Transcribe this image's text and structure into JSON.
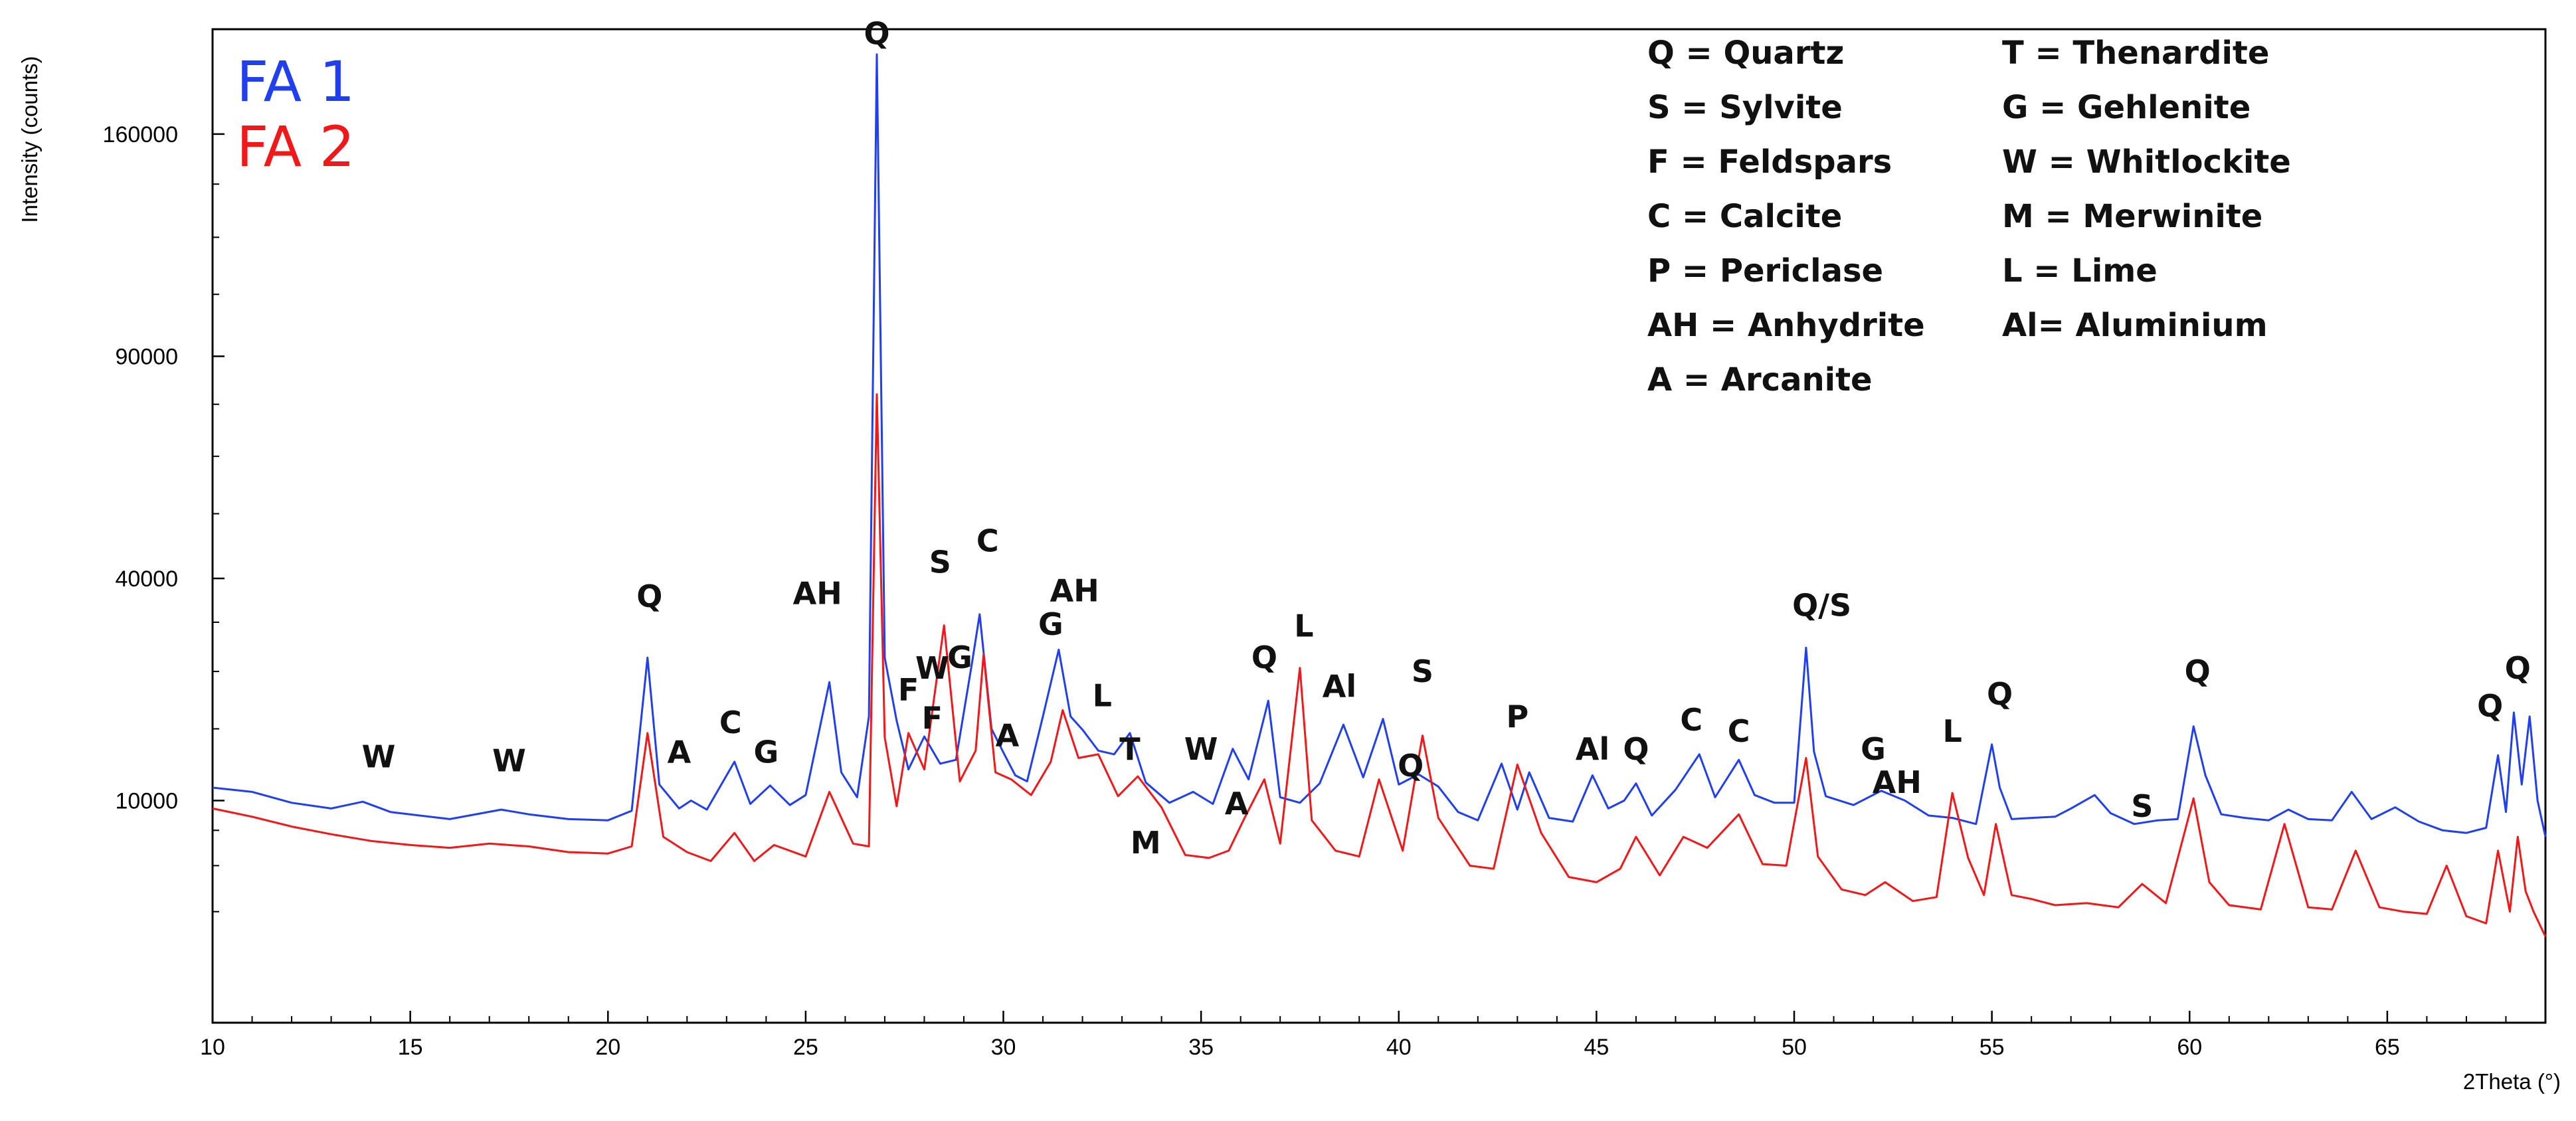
{
  "chart_data": {
    "type": "line",
    "xlabel": "2Theta (°)",
    "ylabel": "Intensity (counts)",
    "xlim": [
      10,
      69
    ],
    "y_scale": "sqrt",
    "ylim": [
      0,
      200000
    ],
    "x_ticks": [
      10,
      15,
      20,
      25,
      30,
      35,
      40,
      45,
      50,
      55,
      60,
      65
    ],
    "y_ticks": [
      10000,
      40000,
      90000,
      160000
    ],
    "grid": false,
    "series_legend_position": "top-left",
    "series": [
      {
        "name": "FA 1",
        "color": "#1f3ff0",
        "x": [
          10,
          11,
          12,
          13,
          13.8,
          14.5,
          16,
          17.3,
          18,
          19,
          20,
          20.6,
          21,
          21.3,
          21.8,
          22.1,
          22.5,
          23.2,
          23.6,
          24.1,
          24.6,
          25,
          25.6,
          25.9,
          26.3,
          26.6,
          26.8,
          27.0,
          27.3,
          27.6,
          28.0,
          28.4,
          28.8,
          29.2,
          29.4,
          29.7,
          30.0,
          30.3,
          30.6,
          31.0,
          31.4,
          31.7,
          32.0,
          32.4,
          32.8,
          33.2,
          33.6,
          34.2,
          34.8,
          35.3,
          35.8,
          36.2,
          36.7,
          37.0,
          37.5,
          38.0,
          38.6,
          39.1,
          39.6,
          40.0,
          40.5,
          41.0,
          41.5,
          42.0,
          42.6,
          43.0,
          43.3,
          43.8,
          44.4,
          44.9,
          45.3,
          45.7,
          46.0,
          46.4,
          47.0,
          47.6,
          48.0,
          48.6,
          49.0,
          49.5,
          50.0,
          50.3,
          50.5,
          50.8,
          51.5,
          52.2,
          52.8,
          53.4,
          54.0,
          54.6,
          55.0,
          55.2,
          55.5,
          56.0,
          56.6,
          57.0,
          57.6,
          58.0,
          58.6,
          59.2,
          59.7,
          60.1,
          60.4,
          60.8,
          61.4,
          62.0,
          62.5,
          63.0,
          63.6,
          64.1,
          64.6,
          65.2,
          65.8,
          66.4,
          67.0,
          67.5,
          67.8,
          68.0,
          68.2,
          68.4,
          68.6,
          68.8,
          69.0
        ],
        "y": [
          11200,
          10800,
          9800,
          9300,
          9900,
          9000,
          8400,
          9200,
          8800,
          8400,
          8300,
          9100,
          27000,
          11500,
          9300,
          10000,
          9200,
          13800,
          9700,
          11400,
          9600,
          10500,
          23500,
          12700,
          10300,
          19000,
          190000,
          27000,
          18500,
          13000,
          16600,
          13600,
          14000,
          26000,
          33800,
          17500,
          14800,
          12400,
          11800,
          19000,
          28200,
          19000,
          17400,
          15000,
          14600,
          17000,
          11700,
          9800,
          10800,
          9700,
          15200,
          12000,
          21000,
          10300,
          9800,
          11600,
          18000,
          12200,
          18700,
          11500,
          12500,
          11300,
          9000,
          8300,
          13600,
          9200,
          12700,
          8500,
          8200,
          12400,
          9300,
          10000,
          11600,
          8700,
          11000,
          14600,
          10300,
          14000,
          10500,
          9800,
          9800,
          28500,
          14900,
          10400,
          9600,
          10900,
          10000,
          8700,
          8500,
          8000,
          15700,
          11200,
          8400,
          8500,
          8600,
          9300,
          10500,
          8900,
          8000,
          8300,
          8400,
          17800,
          12400,
          8800,
          8500,
          8300,
          9200,
          8400,
          8300,
          10800,
          8400,
          9400,
          8200,
          7500,
          7300,
          7700,
          14500,
          9000,
          19500,
          11500,
          19000,
          10000,
          7000
        ]
      },
      {
        "name": "FA 2",
        "color": "#f01818",
        "x": [
          10,
          11,
          12,
          13,
          14,
          15,
          16,
          17,
          18,
          19,
          20,
          20.6,
          21,
          21.4,
          22,
          22.6,
          23.2,
          23.7,
          24.2,
          25,
          25.6,
          26.2,
          26.6,
          26.8,
          27.0,
          27.3,
          27.6,
          28.0,
          28.5,
          28.9,
          29.3,
          29.5,
          29.8,
          30.2,
          30.7,
          31.2,
          31.5,
          31.9,
          32.4,
          32.9,
          33.4,
          34.0,
          34.6,
          35.2,
          35.7,
          36.1,
          36.6,
          37.0,
          37.5,
          37.8,
          38.4,
          39.0,
          39.5,
          40.1,
          40.6,
          41.0,
          41.8,
          42.4,
          43.0,
          43.6,
          44.3,
          45.0,
          45.6,
          46.0,
          46.6,
          47.2,
          47.8,
          48.6,
          49.2,
          49.8,
          50.3,
          50.6,
          51.2,
          51.8,
          52.3,
          53.0,
          53.6,
          54.0,
          54.4,
          54.8,
          55.1,
          55.5,
          56.0,
          56.6,
          57.4,
          58.2,
          58.8,
          59.4,
          60.1,
          60.5,
          61.0,
          61.8,
          62.4,
          63.0,
          63.6,
          64.2,
          64.8,
          65.4,
          66.0,
          66.5,
          67.0,
          67.5,
          67.8,
          68.1,
          68.3,
          68.5,
          68.7,
          69.0
        ],
        "y": [
          9300,
          8600,
          7800,
          7200,
          6700,
          6400,
          6200,
          6500,
          6300,
          5900,
          5800,
          6300,
          17000,
          7000,
          5900,
          5300,
          7300,
          5300,
          6400,
          5600,
          10800,
          6500,
          6300,
          80000,
          16500,
          9500,
          17000,
          13000,
          32000,
          11800,
          15000,
          27500,
          12700,
          12000,
          10500,
          13800,
          19800,
          14200,
          14600,
          10400,
          12300,
          9400,
          5700,
          5500,
          6000,
          8500,
          12000,
          6500,
          25500,
          8300,
          6000,
          5600,
          12000,
          6000,
          16700,
          8500,
          5000,
          4800,
          13500,
          7300,
          4300,
          4000,
          4800,
          7000,
          4400,
          7000,
          6200,
          8800,
          5100,
          5000,
          14200,
          5600,
          3600,
          3300,
          4000,
          3000,
          3200,
          10700,
          5500,
          3300,
          8000,
          3300,
          3100,
          2800,
          2900,
          2700,
          3900,
          2900,
          10200,
          4000,
          2800,
          2600,
          8000,
          2700,
          2600,
          6000,
          2700,
          2500,
          2400,
          5000,
          2300,
          2000,
          6000,
          2500,
          7000,
          3500,
          2500,
          1500
        ]
      }
    ],
    "peak_labels": [
      {
        "text": "W",
        "x": 14.2,
        "y": 13200
      },
      {
        "text": "W",
        "x": 17.5,
        "y": 12800
      },
      {
        "text": "Q",
        "x": 21.05,
        "y": 35000
      },
      {
        "text": "A",
        "x": 21.8,
        "y": 13700
      },
      {
        "text": "C",
        "x": 23.1,
        "y": 17000
      },
      {
        "text": "G",
        "x": 24.0,
        "y": 13700
      },
      {
        "text": "AH",
        "x": 25.3,
        "y": 35500
      },
      {
        "text": "Q",
        "x": 26.8,
        "y": 194000
      },
      {
        "text": "S",
        "x": 28.4,
        "y": 41000
      },
      {
        "text": "C",
        "x": 29.6,
        "y": 45000
      },
      {
        "text": "F",
        "x": 27.6,
        "y": 21000
      },
      {
        "text": "W",
        "x": 28.2,
        "y": 24000
      },
      {
        "text": "G",
        "x": 28.9,
        "y": 25500
      },
      {
        "text": "F",
        "x": 28.2,
        "y": 17500
      },
      {
        "text": "A",
        "x": 30.1,
        "y": 15500
      },
      {
        "text": "G",
        "x": 31.2,
        "y": 30500
      },
      {
        "text": "AH",
        "x": 31.8,
        "y": 36000
      },
      {
        "text": "L",
        "x": 32.5,
        "y": 20300
      },
      {
        "text": "T",
        "x": 33.2,
        "y": 14000
      },
      {
        "text": "M",
        "x": 33.6,
        "y": 5800
      },
      {
        "text": "W",
        "x": 35.0,
        "y": 14000
      },
      {
        "text": "A",
        "x": 35.9,
        "y": 8800
      },
      {
        "text": "Q",
        "x": 36.6,
        "y": 25500
      },
      {
        "text": "L",
        "x": 37.6,
        "y": 30200
      },
      {
        "text": "Al",
        "x": 38.5,
        "y": 21500
      },
      {
        "text": "S",
        "x": 40.6,
        "y": 23500
      },
      {
        "text": "Q",
        "x": 40.3,
        "y": 12300
      },
      {
        "text": "P",
        "x": 43.0,
        "y": 17700
      },
      {
        "text": "Al",
        "x": 44.9,
        "y": 14000
      },
      {
        "text": "Q",
        "x": 46.0,
        "y": 14000
      },
      {
        "text": "C",
        "x": 47.4,
        "y": 17300
      },
      {
        "text": "C",
        "x": 48.6,
        "y": 16000
      },
      {
        "text": "Q/S",
        "x": 50.7,
        "y": 33500
      },
      {
        "text": "G",
        "x": 52.0,
        "y": 14000
      },
      {
        "text": "AH",
        "x": 52.6,
        "y": 10700
      },
      {
        "text": "L",
        "x": 54.0,
        "y": 16000
      },
      {
        "text": "Q",
        "x": 55.2,
        "y": 20500
      },
      {
        "text": "S",
        "x": 58.8,
        "y": 8600
      },
      {
        "text": "Q",
        "x": 60.2,
        "y": 23500
      },
      {
        "text": "Q",
        "x": 67.6,
        "y": 19000
      },
      {
        "text": "Q",
        "x": 68.3,
        "y": 24000
      }
    ],
    "legend": [
      [
        "Q = Quartz",
        "T = Thenardite"
      ],
      [
        "S = Sylvite",
        "G = Gehlenite"
      ],
      [
        "F = Feldspars",
        "W = Whitlockite"
      ],
      [
        "C = Calcite",
        "M = Merwinite"
      ],
      [
        "P = Periclase",
        "L = Lime"
      ],
      [
        "AH = Anhydrite",
        "Al= Aluminium"
      ],
      [
        "A = Arcanite",
        ""
      ]
    ]
  }
}
